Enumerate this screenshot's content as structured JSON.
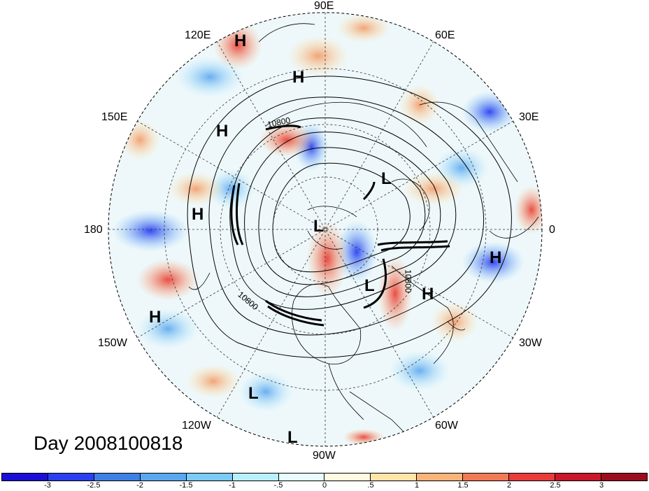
{
  "map": {
    "projection": "north polar stereographic",
    "center_lat": 90,
    "longitude_labels": [
      "90E",
      "60E",
      "30E",
      "0",
      "30W",
      "60W",
      "90W",
      "120W",
      "150W",
      "180",
      "150E",
      "120E"
    ],
    "pressure_centers": [
      {
        "type": "H"
      },
      {
        "type": "H"
      },
      {
        "type": "H"
      },
      {
        "type": "H"
      },
      {
        "type": "H"
      },
      {
        "type": "H"
      },
      {
        "type": "H"
      },
      {
        "type": "L"
      },
      {
        "type": "L"
      },
      {
        "type": "L"
      },
      {
        "type": "L"
      },
      {
        "type": "L"
      }
    ],
    "contour_labels": [
      "10800",
      "10800",
      "10800"
    ],
    "title": "Day 2008100818"
  },
  "colorbar": {
    "tick_labels": [
      "-3",
      "-2.5",
      "-2",
      "-1.5",
      "-1",
      "-.5",
      "0",
      ".5",
      "1",
      "1.5",
      "2",
      "2.5",
      "3"
    ],
    "colors": [
      "#1a0fd6",
      "#2b3ff0",
      "#3f7fe8",
      "#5aa6ef",
      "#7ccbf5",
      "#b9effb",
      "#e8fbff",
      "#fffbe0",
      "#ffe6a8",
      "#f9b47a",
      "#f07a56",
      "#e83c3a",
      "#c8182a",
      "#9a0d1e"
    ]
  }
}
